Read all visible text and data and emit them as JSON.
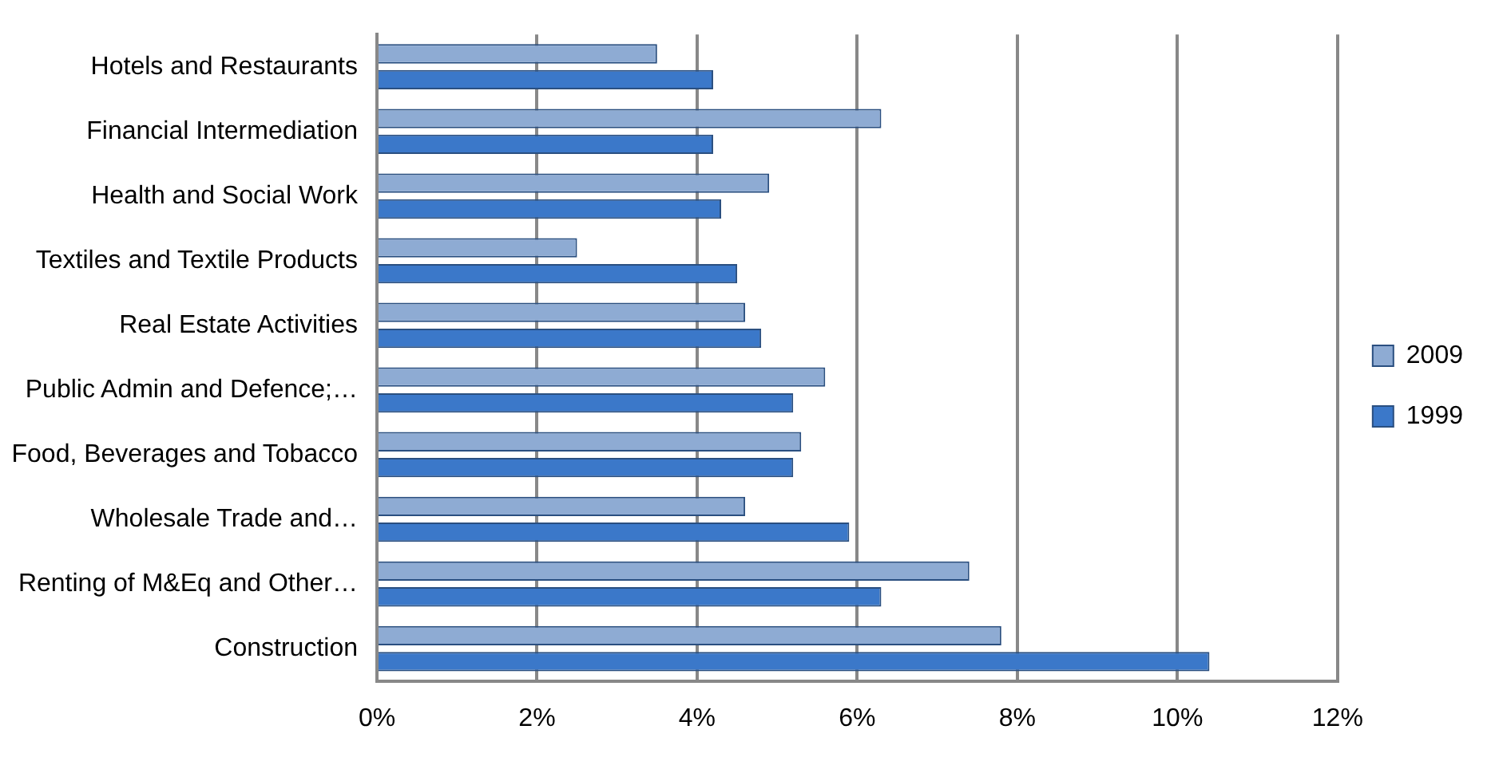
{
  "chart_data": {
    "type": "bar",
    "orientation": "horizontal",
    "categories": [
      "Hotels and Restaurants",
      "Financial Intermediation",
      "Health and Social Work",
      "Textiles and Textile Products",
      "Real Estate Activities",
      "Public Admin and Defence;…",
      "Food, Beverages and Tobacco",
      "Wholesale Trade and…",
      "Renting of M&Eq and Other…",
      "Construction"
    ],
    "series": [
      {
        "name": "2009",
        "color": "#8eabd3",
        "values": [
          3.5,
          6.3,
          4.9,
          2.5,
          4.6,
          5.6,
          5.3,
          4.6,
          7.4,
          7.8
        ]
      },
      {
        "name": "1999",
        "color": "#3b78c9",
        "values": [
          4.2,
          4.2,
          4.3,
          4.5,
          4.8,
          5.2,
          5.2,
          5.9,
          6.3,
          10.4
        ]
      }
    ],
    "xlim": [
      0,
      12
    ],
    "xticks": [
      {
        "value": 0,
        "label": "0%"
      },
      {
        "value": 2,
        "label": "2%"
      },
      {
        "value": 4,
        "label": "4%"
      },
      {
        "value": 6,
        "label": "6%"
      },
      {
        "value": 8,
        "label": "8%"
      },
      {
        "value": 10,
        "label": "10%"
      },
      {
        "value": 12,
        "label": "12%"
      }
    ],
    "grid": "x",
    "legend": "right"
  }
}
